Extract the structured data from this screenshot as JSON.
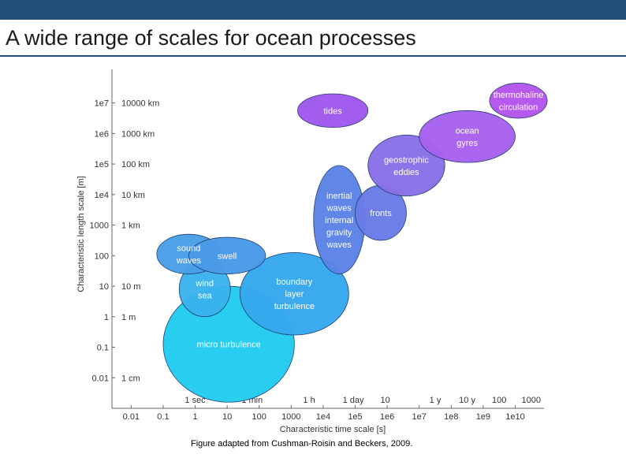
{
  "slide": {
    "title": "A wide range of scales for ocean processes",
    "caption": "Figure adapted from Cushman-Roisin and  Beckers, 2009."
  },
  "colors": {
    "header_bar": "#1f4e79",
    "title_rule": "#1f4e79"
  },
  "chart_data": {
    "type": "bubble-regions",
    "xlabel": "Characteristic time scale [s]",
    "ylabel": "Characteristic length scale [m]",
    "xscale": "log10",
    "yscale": "log10",
    "xlim_log10": [
      -2.6,
      10.9
    ],
    "ylim_log10": [
      -3,
      8.1
    ],
    "x_ticks": [
      {
        "log": -2,
        "label": "0.01"
      },
      {
        "log": -1,
        "label": "0.1"
      },
      {
        "log": 0,
        "label": "1"
      },
      {
        "log": 1,
        "label": "10"
      },
      {
        "log": 2,
        "label": "100"
      },
      {
        "log": 3,
        "label": "1000"
      },
      {
        "log": 4,
        "label": "1e4"
      },
      {
        "log": 5,
        "label": "1e5"
      },
      {
        "log": 6,
        "label": "1e6"
      },
      {
        "log": 7,
        "label": "1e7"
      },
      {
        "log": 8,
        "label": "1e8"
      },
      {
        "log": 9,
        "label": "1e9"
      },
      {
        "log": 10,
        "label": "1e10"
      }
    ],
    "x_unit_labels": [
      {
        "log": 0,
        "label": "1 sec"
      },
      {
        "log": 1.78,
        "label": "1 min"
      },
      {
        "log": 3.56,
        "label": "1 h"
      },
      {
        "log": 4.94,
        "label": "1 day"
      },
      {
        "log": 5.94,
        "label": "10"
      },
      {
        "log": 7.5,
        "label": "1 y"
      },
      {
        "log": 8.5,
        "label": "10 y"
      },
      {
        "log": 9.5,
        "label": "100"
      },
      {
        "log": 10.5,
        "label": "1000"
      }
    ],
    "y_ticks": [
      {
        "log": -2,
        "label": "0.01"
      },
      {
        "log": -1,
        "label": "0.1"
      },
      {
        "log": 0,
        "label": "1"
      },
      {
        "log": 1,
        "label": "10"
      },
      {
        "log": 2,
        "label": "100"
      },
      {
        "log": 3,
        "label": "1000"
      },
      {
        "log": 4,
        "label": "1e4"
      },
      {
        "log": 5,
        "label": "1e5"
      },
      {
        "log": 6,
        "label": "1e6"
      },
      {
        "log": 7,
        "label": "1e7"
      }
    ],
    "y_unit_labels": [
      {
        "log": -2,
        "label": "1 cm"
      },
      {
        "log": 0,
        "label": "1 m"
      },
      {
        "log": 1,
        "label": "10 m"
      },
      {
        "log": 3,
        "label": "1 km"
      },
      {
        "log": 4,
        "label": "10 km"
      },
      {
        "log": 5,
        "label": "100 km"
      },
      {
        "log": 6,
        "label": "1000 km"
      },
      {
        "log": 7,
        "label": "10000 km"
      }
    ],
    "processes": [
      {
        "name": "micro turbulence",
        "lines": [
          "micro turbulence"
        ],
        "x_log": [
          -1,
          3.1
        ],
        "y_log": [
          -2.8,
          1
        ],
        "color": "#22ccf0"
      },
      {
        "name": "wind sea",
        "lines": [
          "wind",
          "sea"
        ],
        "x_log": [
          -0.5,
          1.1
        ],
        "y_log": [
          0,
          1.8
        ],
        "color": "#3ab3ee"
      },
      {
        "name": "boundary layer turbulence",
        "lines": [
          "boundary",
          "layer",
          "turbulence"
        ],
        "x_log": [
          1.4,
          4.8
        ],
        "y_log": [
          -0.6,
          2.1
        ],
        "color": "#36a8ee"
      },
      {
        "name": "sound waves",
        "lines": [
          "sound",
          "waves"
        ],
        "x_log": [
          -1.2,
          0.8
        ],
        "y_log": [
          1.4,
          2.7
        ],
        "color": "#4a9ee8"
      },
      {
        "name": "swell",
        "lines": [
          "swell"
        ],
        "x_log": [
          -0.2,
          2.2
        ],
        "y_log": [
          1.4,
          2.6
        ],
        "color": "#4a9ae8"
      },
      {
        "name": "inertial waves internal gravity waves",
        "lines": [
          "inertial",
          "waves",
          "internal",
          "gravity",
          "waves"
        ],
        "x_log": [
          3.7,
          5.3
        ],
        "y_log": [
          1.4,
          4.95
        ],
        "color": "#5b84e8"
      },
      {
        "name": "fronts",
        "lines": [
          "fronts"
        ],
        "x_log": [
          5.0,
          6.6
        ],
        "y_log": [
          2.5,
          4.3
        ],
        "color": "#6a7ce8"
      },
      {
        "name": "geostrophic eddies",
        "lines": [
          "geostrophic",
          "eddies"
        ],
        "x_log": [
          5.4,
          7.8
        ],
        "y_log": [
          3.95,
          5.95
        ],
        "color": "#8a70e8"
      },
      {
        "name": "tides",
        "lines": [
          "tides"
        ],
        "x_log": [
          3.2,
          5.4
        ],
        "y_log": [
          6.2,
          7.3
        ],
        "color": "#a058ee"
      },
      {
        "name": "ocean gyres",
        "lines": [
          "ocean",
          "gyres"
        ],
        "x_log": [
          7.0,
          10.0
        ],
        "y_log": [
          5.05,
          6.75
        ],
        "color": "#a862ee"
      },
      {
        "name": "thermohaline circulation",
        "lines": [
          "thermohaline",
          "circulation"
        ],
        "x_log": [
          9.2,
          11.0
        ],
        "y_log": [
          6.5,
          7.65
        ],
        "color": "#b455ee"
      }
    ]
  }
}
